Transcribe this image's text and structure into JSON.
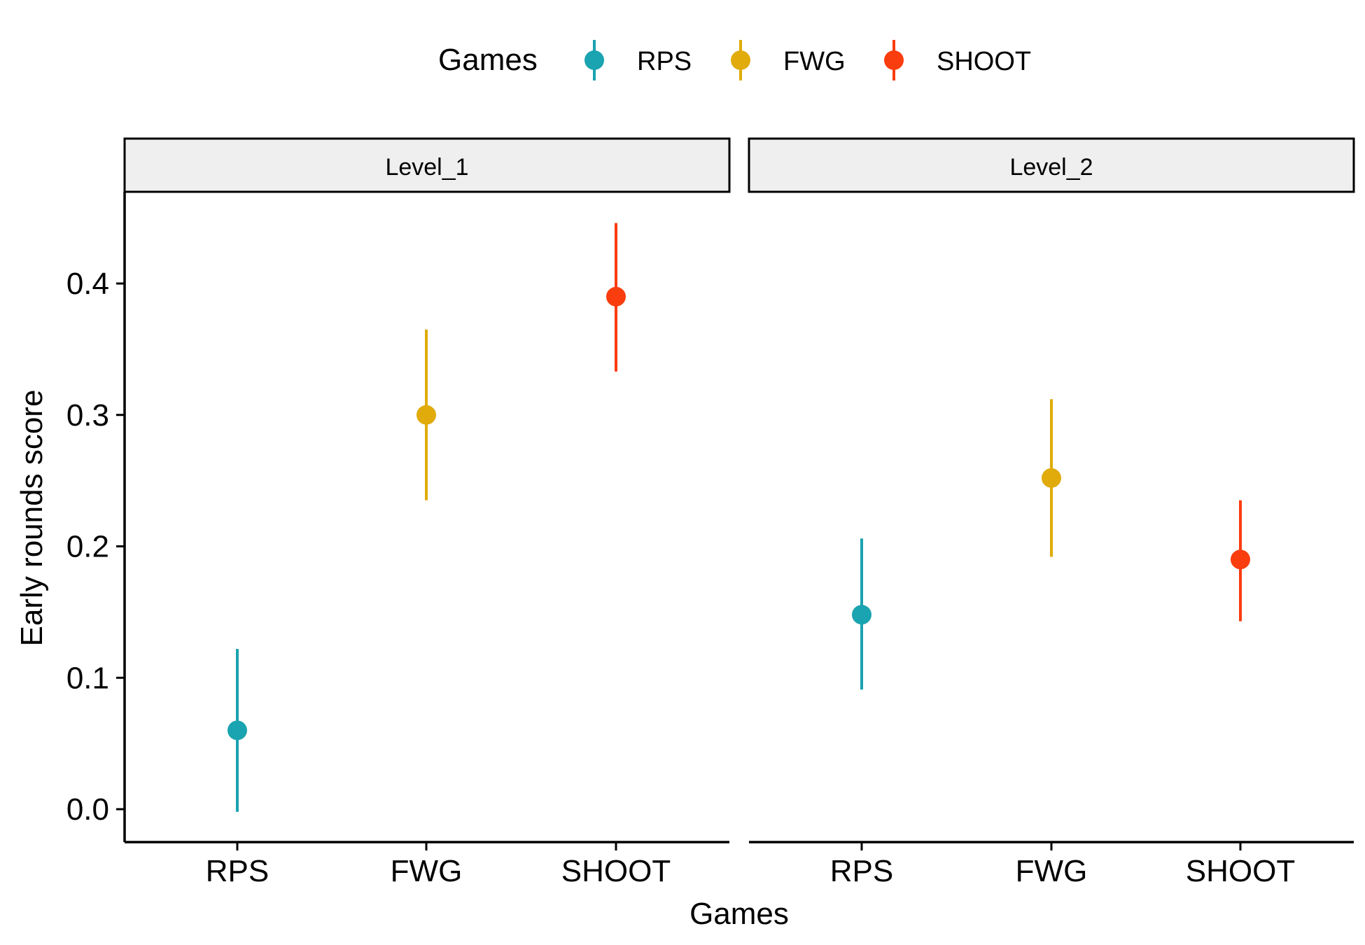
{
  "chart_data": {
    "type": "scatter",
    "subtype": "point-range-faceted",
    "xlabel": "Games",
    "ylabel": "Early rounds score",
    "ylim": [
      -0.025,
      0.465
    ],
    "yticks": [
      0.0,
      0.1,
      0.2,
      0.3,
      0.4
    ],
    "ytick_labels": [
      "0.0",
      "0.1",
      "0.2",
      "0.3",
      "0.4"
    ],
    "categories": [
      "RPS",
      "FWG",
      "SHOOT"
    ],
    "legend": {
      "title": "Games",
      "position": "top",
      "entries": [
        {
          "name": "RPS",
          "color": "#1AA3B0"
        },
        {
          "name": "FWG",
          "color": "#E0AB0B"
        },
        {
          "name": "SHOOT",
          "color": "#FA3D0F"
        }
      ]
    },
    "grid": false,
    "facets": [
      {
        "label": "Level_1",
        "points": [
          {
            "category": "RPS",
            "y": 0.06,
            "ymin": -0.002,
            "ymax": 0.122
          },
          {
            "category": "FWG",
            "y": 0.3,
            "ymin": 0.235,
            "ymax": 0.365
          },
          {
            "category": "SHOOT",
            "y": 0.39,
            "ymin": 0.333,
            "ymax": 0.446
          }
        ]
      },
      {
        "label": "Level_2",
        "points": [
          {
            "category": "RPS",
            "y": 0.148,
            "ymin": 0.091,
            "ymax": 0.206
          },
          {
            "category": "FWG",
            "y": 0.252,
            "ymin": 0.192,
            "ymax": 0.312
          },
          {
            "category": "SHOOT",
            "y": 0.19,
            "ymin": 0.143,
            "ymax": 0.235
          }
        ]
      }
    ]
  }
}
